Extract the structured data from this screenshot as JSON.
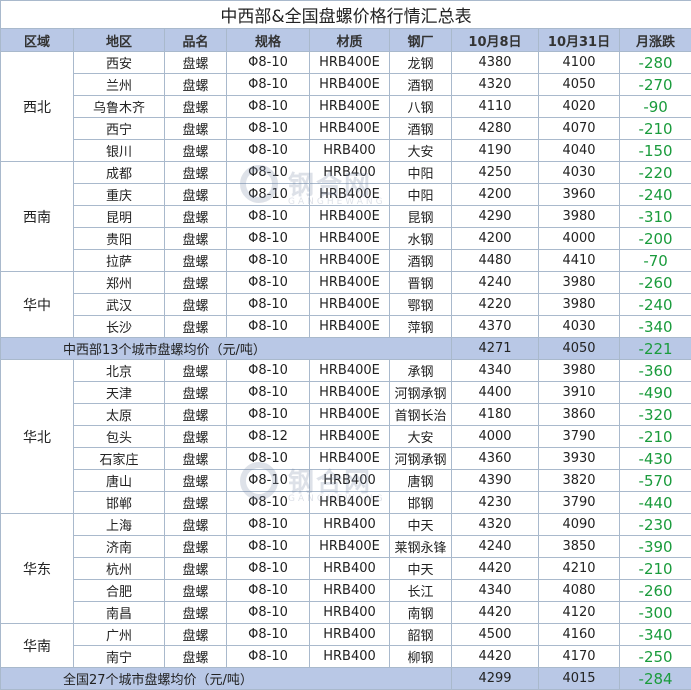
{
  "title": "中西部&全国盘螺价格行情汇总表",
  "headers": [
    "区域",
    "地区",
    "品名",
    "规格",
    "材质",
    "钢厂",
    "10月8日",
    "10月31日",
    "月涨跌"
  ],
  "groups": [
    {
      "region": "西北",
      "rows": [
        [
          "西安",
          "盘螺",
          "Φ8-10",
          "HRB400E",
          "龙钢",
          "4380",
          "4100",
          "-280"
        ],
        [
          "兰州",
          "盘螺",
          "Φ8-10",
          "HRB400E",
          "酒钢",
          "4320",
          "4050",
          "-270"
        ],
        [
          "乌鲁木齐",
          "盘螺",
          "Φ8-10",
          "HRB400E",
          "八钢",
          "4110",
          "4020",
          "-90"
        ],
        [
          "西宁",
          "盘螺",
          "Φ8-10",
          "HRB400E",
          "酒钢",
          "4280",
          "4070",
          "-210"
        ],
        [
          "银川",
          "盘螺",
          "Φ8-10",
          "HRB400",
          "大安",
          "4190",
          "4040",
          "-150"
        ]
      ]
    },
    {
      "region": "西南",
      "rows": [
        [
          "成都",
          "盘螺",
          "Φ8-10",
          "HRB400",
          "中阳",
          "4250",
          "4030",
          "-220"
        ],
        [
          "重庆",
          "盘螺",
          "Φ8-10",
          "HRB400E",
          "中阳",
          "4200",
          "3960",
          "-240"
        ],
        [
          "昆明",
          "盘螺",
          "Φ8-10",
          "HRB400E",
          "昆钢",
          "4290",
          "3980",
          "-310"
        ],
        [
          "贵阳",
          "盘螺",
          "Φ8-10",
          "HRB400E",
          "水钢",
          "4200",
          "4000",
          "-200"
        ],
        [
          "拉萨",
          "盘螺",
          "Φ8-10",
          "HRB400E",
          "酒钢",
          "4480",
          "4410",
          "-70"
        ]
      ]
    },
    {
      "region": "华中",
      "rows": [
        [
          "郑州",
          "盘螺",
          "Φ8-10",
          "HRB400E",
          "晋钢",
          "4240",
          "3980",
          "-260"
        ],
        [
          "武汉",
          "盘螺",
          "Φ8-10",
          "HRB400E",
          "鄂钢",
          "4220",
          "3980",
          "-240"
        ],
        [
          "长沙",
          "盘螺",
          "Φ8-10",
          "HRB400E",
          "萍钢",
          "4370",
          "4030",
          "-340"
        ]
      ]
    }
  ],
  "summary1": {
    "label": "中西部13个城市盘螺均价（元/吨）",
    "oct8": "4271",
    "oct31": "4050",
    "change": "-221"
  },
  "groups2": [
    {
      "region": "华北",
      "rows": [
        [
          "北京",
          "盘螺",
          "Φ8-10",
          "HRB400E",
          "承钢",
          "4340",
          "3980",
          "-360"
        ],
        [
          "天津",
          "盘螺",
          "Φ8-10",
          "HRB400E",
          "河钢承钢",
          "4400",
          "3910",
          "-490"
        ],
        [
          "太原",
          "盘螺",
          "Φ8-10",
          "HRB400E",
          "首钢长治",
          "4180",
          "3860",
          "-320"
        ],
        [
          "包头",
          "盘螺",
          "Φ8-12",
          "HRB400E",
          "大安",
          "4000",
          "3790",
          "-210"
        ],
        [
          "石家庄",
          "盘螺",
          "Φ8-10",
          "HRB400E",
          "河钢承钢",
          "4360",
          "3930",
          "-430"
        ],
        [
          "唐山",
          "盘螺",
          "Φ8-10",
          "HRB400",
          "唐钢",
          "4390",
          "3820",
          "-570"
        ],
        [
          "邯郸",
          "盘螺",
          "Φ8-10",
          "HRB400E",
          "邯钢",
          "4230",
          "3790",
          "-440"
        ]
      ]
    },
    {
      "region": "华东",
      "rows": [
        [
          "上海",
          "盘螺",
          "Φ8-10",
          "HRB400",
          "中天",
          "4320",
          "4090",
          "-230"
        ],
        [
          "济南",
          "盘螺",
          "Φ8-10",
          "HRB400E",
          "莱钢永锋",
          "4240",
          "3850",
          "-390"
        ],
        [
          "杭州",
          "盘螺",
          "Φ8-10",
          "HRB400",
          "中天",
          "4420",
          "4210",
          "-210"
        ],
        [
          "合肥",
          "盘螺",
          "Φ8-10",
          "HRB400",
          "长江",
          "4340",
          "4080",
          "-260"
        ],
        [
          "南昌",
          "盘螺",
          "Φ8-10",
          "HRB400",
          "南钢",
          "4420",
          "4120",
          "-300"
        ]
      ]
    },
    {
      "region": "华南",
      "rows": [
        [
          "广州",
          "盘螺",
          "Φ8-10",
          "HRB400",
          "韶钢",
          "4500",
          "4160",
          "-340"
        ],
        [
          "南宁",
          "盘螺",
          "Φ8-10",
          "HRB400",
          "柳钢",
          "4420",
          "4170",
          "-250"
        ]
      ]
    }
  ],
  "summary2": {
    "label": "全国27个城市盘螺均价（元/吨）",
    "oct8": "4299",
    "oct31": "4015",
    "change": "-284"
  },
  "watermark": {
    "text": "钢合网",
    "sub": "GANGHEWANG"
  }
}
